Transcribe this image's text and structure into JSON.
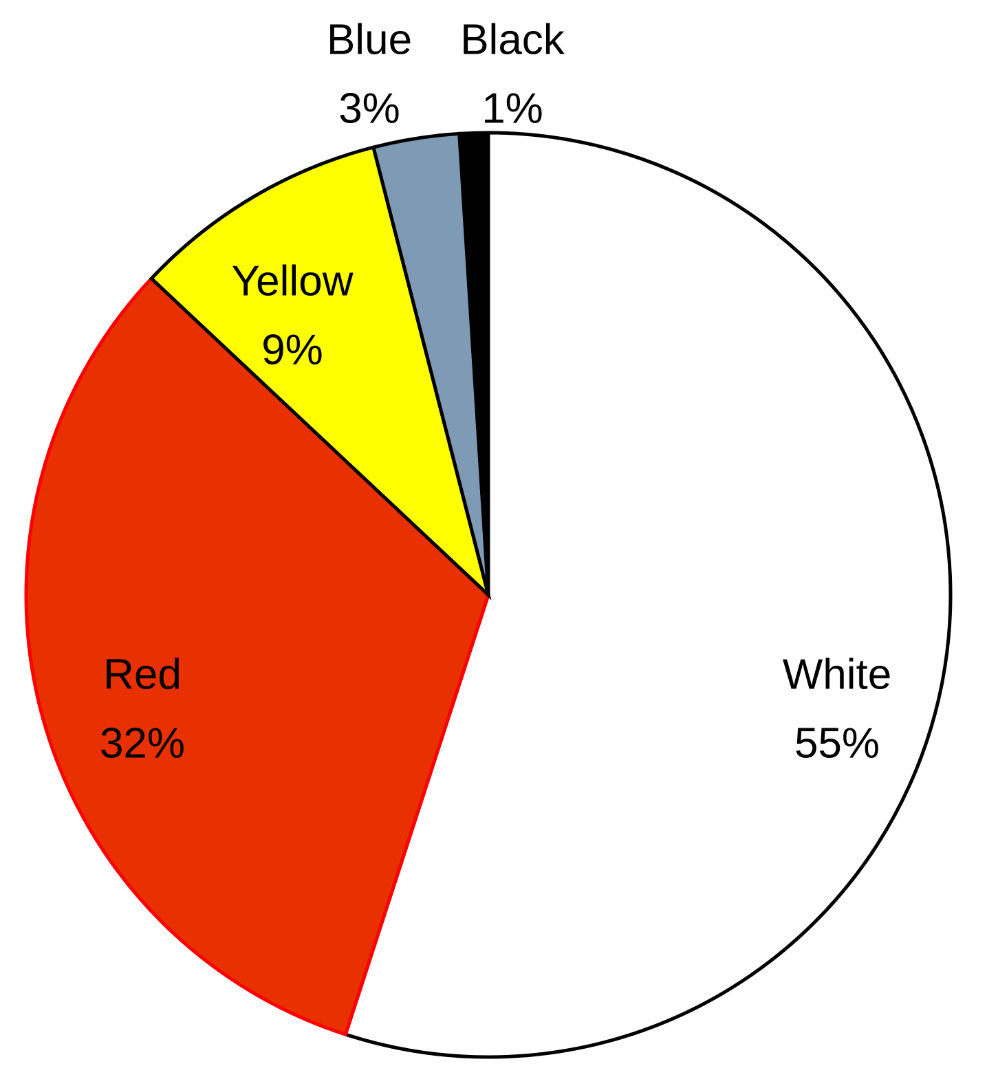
{
  "chart_data": {
    "type": "pie",
    "categories": [
      "White",
      "Red",
      "Yellow",
      "Blue",
      "Black"
    ],
    "values": [
      55,
      32,
      9,
      3,
      1
    ],
    "value_labels": [
      "55%",
      "32%",
      "9%",
      "3%",
      "1%"
    ],
    "colors": [
      "#ffffff",
      "#e83000",
      "#ffff00",
      "#7f9ab5",
      "#000000"
    ],
    "edge_colors": [
      "#000000",
      "#ff0000",
      "#000000",
      "#000000",
      "#000000"
    ]
  }
}
